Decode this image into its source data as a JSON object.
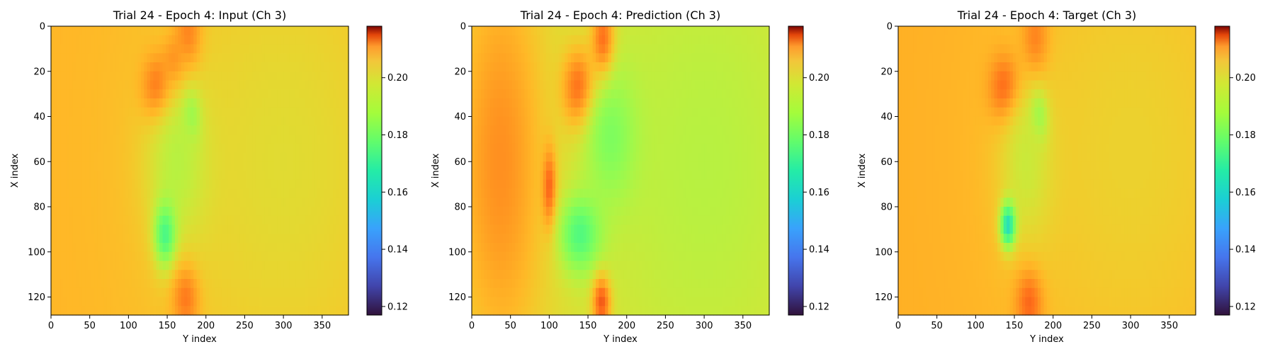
{
  "chart_data": [
    {
      "type": "heatmap",
      "title": "Trial 24 - Epoch 4: Input (Ch 3)",
      "xlabel": "Y index",
      "ylabel": "X index",
      "xlim": [
        0,
        384
      ],
      "ylim": [
        128,
        0
      ],
      "xticks": [
        "0",
        "50",
        "100",
        "150",
        "200",
        "250",
        "300",
        "350"
      ],
      "yticks": [
        "0",
        "20",
        "40",
        "60",
        "80",
        "100",
        "120"
      ],
      "colorbar": {
        "colormap": "turbo",
        "range": [
          0.117,
          0.218
        ],
        "ticks": [
          "0.12",
          "0.14",
          "0.16",
          "0.18",
          "0.20"
        ]
      },
      "background_value": 0.185,
      "features": [
        {
          "x": 178,
          "y": 6,
          "sx": 12,
          "sy": 12,
          "v": 0.208
        },
        {
          "x": 140,
          "y": 28,
          "sx": 14,
          "sy": 10,
          "v": 0.212
        },
        {
          "x": 160,
          "y": 18,
          "sx": 10,
          "sy": 8,
          "v": 0.207
        },
        {
          "x": 182,
          "y": 42,
          "sx": 8,
          "sy": 8,
          "v": 0.135
        },
        {
          "x": 170,
          "y": 60,
          "sx": 30,
          "sy": 25,
          "v": 0.165
        },
        {
          "x": 148,
          "y": 92,
          "sx": 10,
          "sy": 10,
          "v": 0.142
        },
        {
          "x": 175,
          "y": 120,
          "sx": 12,
          "sy": 10,
          "v": 0.206
        },
        {
          "x": 300,
          "y": 60,
          "sx": 120,
          "sy": 80,
          "v": 0.178
        }
      ]
    },
    {
      "type": "heatmap",
      "title": "Trial 24 - Epoch 4: Prediction (Ch 3)",
      "xlabel": "Y index",
      "ylabel": "X index",
      "xlim": [
        0,
        384
      ],
      "ylim": [
        128,
        0
      ],
      "xticks": [
        "0",
        "50",
        "100",
        "150",
        "200",
        "250",
        "300",
        "350"
      ],
      "yticks": [
        "0",
        "20",
        "40",
        "60",
        "80",
        "100",
        "120"
      ],
      "colorbar": {
        "colormap": "turbo",
        "range": [
          0.117,
          0.218
        ],
        "ticks": [
          "0.12",
          "0.14",
          "0.16",
          "0.18",
          "0.20"
        ]
      },
      "background_value": 0.178,
      "features": [
        {
          "x": 170,
          "y": 8,
          "sx": 10,
          "sy": 12,
          "v": 0.215
        },
        {
          "x": 140,
          "y": 28,
          "sx": 15,
          "sy": 12,
          "v": 0.21
        },
        {
          "x": 100,
          "y": 72,
          "sx": 6,
          "sy": 12,
          "v": 0.21
        },
        {
          "x": 185,
          "y": 50,
          "sx": 25,
          "sy": 20,
          "v": 0.155
        },
        {
          "x": 140,
          "y": 92,
          "sx": 20,
          "sy": 12,
          "v": 0.15
        },
        {
          "x": 168,
          "y": 122,
          "sx": 8,
          "sy": 8,
          "v": 0.214
        },
        {
          "x": 40,
          "y": 60,
          "sx": 40,
          "sy": 60,
          "v": 0.192
        },
        {
          "x": 300,
          "y": 60,
          "sx": 110,
          "sy": 80,
          "v": 0.172
        }
      ]
    },
    {
      "type": "heatmap",
      "title": "Trial 24 - Epoch 4: Target (Ch 3)",
      "xlabel": "Y index",
      "ylabel": "X index",
      "xlim": [
        0,
        384
      ],
      "ylim": [
        128,
        0
      ],
      "xticks": [
        "0",
        "50",
        "100",
        "150",
        "200",
        "250",
        "300",
        "350"
      ],
      "yticks": [
        "0",
        "20",
        "40",
        "60",
        "80",
        "100",
        "120"
      ],
      "colorbar": {
        "colormap": "turbo",
        "range": [
          0.117,
          0.218
        ],
        "ticks": [
          "0.12",
          "0.14",
          "0.16",
          "0.18",
          "0.20"
        ]
      },
      "background_value": 0.186,
      "features": [
        {
          "x": 178,
          "y": 8,
          "sx": 12,
          "sy": 12,
          "v": 0.208
        },
        {
          "x": 140,
          "y": 28,
          "sx": 14,
          "sy": 10,
          "v": 0.212
        },
        {
          "x": 182,
          "y": 42,
          "sx": 8,
          "sy": 8,
          "v": 0.125
        },
        {
          "x": 170,
          "y": 60,
          "sx": 25,
          "sy": 25,
          "v": 0.168
        },
        {
          "x": 142,
          "y": 88,
          "sx": 7,
          "sy": 7,
          "v": 0.128
        },
        {
          "x": 170,
          "y": 122,
          "sx": 12,
          "sy": 10,
          "v": 0.207
        },
        {
          "x": 300,
          "y": 55,
          "sx": 120,
          "sy": 80,
          "v": 0.18
        }
      ]
    }
  ]
}
